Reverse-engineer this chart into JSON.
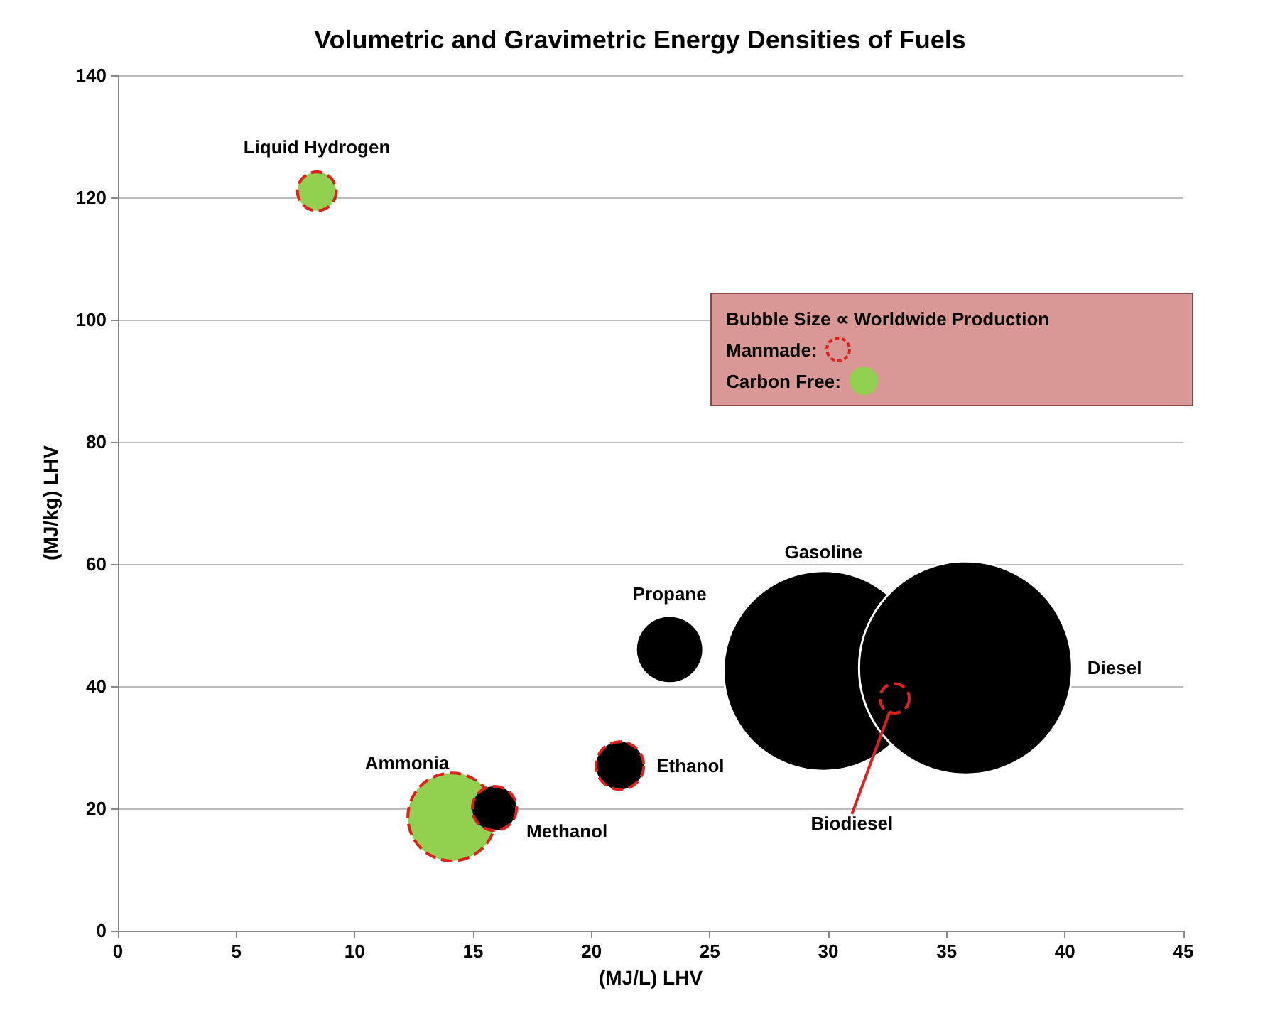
{
  "chart_data": {
    "type": "bubble",
    "title": "Volumetric and Gravimetric Energy Densities of Fuels",
    "xlabel": "(MJ/L) LHV",
    "ylabel": "(MJ/kg) LHV",
    "xlim": [
      0,
      45
    ],
    "xticks": [
      0,
      5,
      10,
      15,
      20,
      25,
      30,
      35,
      40,
      45
    ],
    "ylim": [
      0,
      140
    ],
    "yticks": [
      0,
      20,
      40,
      60,
      80,
      100,
      120,
      140
    ],
    "grid": "y",
    "legend": false,
    "annotations": [
      "Bubble Size ∝ Worldwide Production",
      "Manmade:",
      "Carbon Free:"
    ],
    "series": [
      {
        "name": "Gasoline",
        "color": "#000000",
        "x": [
          29.8
        ],
        "values": [
          42.5
        ],
        "sizes": [
          0.88
        ]
      },
      {
        "name": "Diesel",
        "color": "#000000",
        "x": [
          35.8
        ],
        "values": [
          43
        ],
        "sizes": [
          1
        ]
      },
      {
        "name": "Liquid Hydrogen",
        "color": "#92d050",
        "x": [
          8.4
        ],
        "values": [
          121
        ],
        "sizes": [
          0.033
        ],
        "line_style": "dashed"
      },
      {
        "name": "Ammonia",
        "color": "#92d050",
        "x": [
          14.1
        ],
        "values": [
          18.6
        ],
        "sizes": [
          0.17
        ],
        "line_style": "dashed"
      },
      {
        "name": "Methanol",
        "color": "#000000",
        "x": [
          15.9
        ],
        "values": [
          20
        ],
        "sizes": [
          0.043
        ],
        "line_style": "dashed"
      },
      {
        "name": "Ethanol",
        "color": "#000000",
        "x": [
          21.2
        ],
        "values": [
          27
        ],
        "sizes": [
          0.05
        ],
        "line_style": "dashed"
      },
      {
        "name": "Propane",
        "color": "#000000",
        "x": [
          23.3
        ],
        "values": [
          46
        ],
        "sizes": [
          0.1
        ]
      },
      {
        "name": "Biodiesel",
        "color": null,
        "x": [
          32.8
        ],
        "values": [
          38
        ],
        "sizes": [
          0.019
        ],
        "line_style": "dashed"
      }
    ]
  }
}
